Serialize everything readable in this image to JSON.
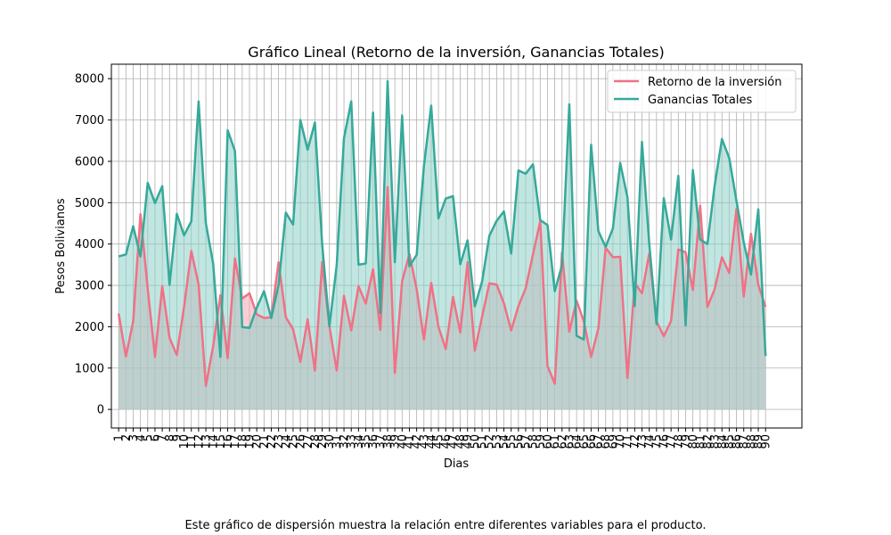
{
  "chart_data": {
    "type": "area",
    "title": "Gráfico Lineal (Retorno de la inversión, Ganancias Totales)",
    "xlabel": "Dias",
    "ylabel": "Pesos Bolivianos",
    "x": [
      1,
      2,
      3,
      4,
      5,
      6,
      7,
      8,
      9,
      10,
      11,
      12,
      13,
      14,
      15,
      16,
      17,
      18,
      19,
      20,
      21,
      22,
      23,
      24,
      25,
      26,
      27,
      28,
      29,
      30,
      31,
      32,
      33,
      34,
      35,
      36,
      37,
      38,
      39,
      40,
      41,
      42,
      43,
      44,
      45,
      46,
      47,
      48,
      49,
      50,
      51,
      52,
      53,
      54,
      55,
      56,
      57,
      58,
      59,
      60,
      61,
      62,
      63,
      64,
      65,
      66,
      67,
      68,
      69,
      70,
      71,
      72,
      73,
      74,
      75,
      76,
      77,
      78,
      79,
      80,
      81,
      82,
      83,
      84,
      85,
      86,
      87,
      88,
      89,
      90
    ],
    "yticks": [
      0,
      1000,
      2000,
      3000,
      4000,
      5000,
      6000,
      7000,
      8000
    ],
    "ylim": [
      -450,
      8350
    ],
    "xlim": [
      0,
      95
    ],
    "grid": true,
    "legend_position": "top-right",
    "series": [
      {
        "name": "Retorno de la inversión",
        "color": "#f07185",
        "values": [
          2320,
          1280,
          2130,
          4720,
          2920,
          1270,
          2980,
          1730,
          1320,
          2480,
          3830,
          3020,
          570,
          1530,
          2760,
          1240,
          3650,
          2680,
          2810,
          2300,
          2210,
          2230,
          3560,
          2230,
          1940,
          1150,
          2180,
          940,
          3560,
          2010,
          940,
          2750,
          1910,
          2980,
          2560,
          3390,
          1920,
          5380,
          880,
          3100,
          3760,
          2910,
          1690,
          3060,
          2000,
          1460,
          2720,
          1860,
          3560,
          1420,
          2240,
          3050,
          3020,
          2570,
          1910,
          2500,
          2930,
          3750,
          4550,
          1050,
          620,
          3800,
          1880,
          2630,
          2130,
          1270,
          1960,
          3910,
          3680,
          3690,
          760,
          3060,
          2810,
          3770,
          2130,
          1770,
          2140,
          3870,
          3800,
          2890,
          4930,
          2480,
          2910,
          3680,
          3300,
          4850,
          2730,
          4250,
          3010,
          2480
        ],
        "fill_color": "#f4a6b2"
      },
      {
        "name": "Ganancias Totales",
        "color": "#36a99a",
        "values": [
          3700,
          3750,
          4430,
          3700,
          5480,
          4990,
          5400,
          3010,
          4730,
          4210,
          4550,
          7450,
          4500,
          3530,
          1270,
          6750,
          6250,
          1990,
          1970,
          2460,
          2860,
          2210,
          3010,
          4760,
          4470,
          7000,
          6280,
          6940,
          4000,
          2010,
          3490,
          6560,
          7450,
          3500,
          3530,
          7180,
          2330,
          7940,
          3560,
          7110,
          3460,
          3740,
          5890,
          7350,
          4620,
          5100,
          5160,
          3510,
          4090,
          2490,
          3090,
          4200,
          4560,
          4790,
          3770,
          5780,
          5700,
          5930,
          4580,
          4460,
          2860,
          3490,
          7380,
          1780,
          1690,
          6400,
          4310,
          3930,
          4380,
          5960,
          5130,
          2500,
          6470,
          4000,
          2060,
          5110,
          4110,
          5650,
          2030,
          5790,
          4110,
          4000,
          5420,
          6540,
          6080,
          5040,
          4040,
          3260,
          4840,
          1290
        ],
        "fill_color": "#8ed2c9"
      }
    ]
  },
  "caption": "Este gráfico de dispersión muestra la relación entre diferentes variables para el producto."
}
